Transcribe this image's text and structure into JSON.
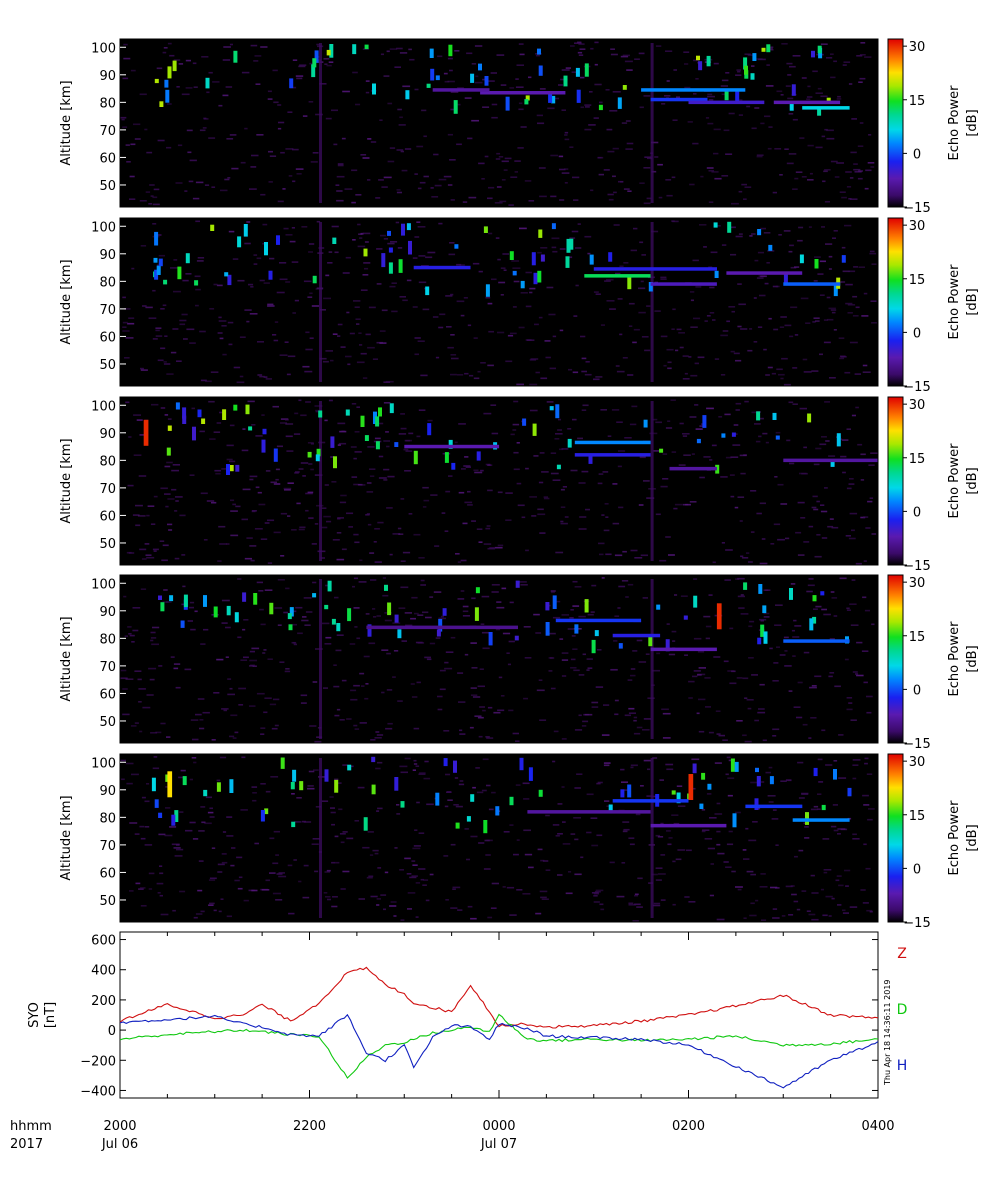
{
  "figure": {
    "time_axis": {
      "row_labels": [
        "hhmm",
        "2017"
      ],
      "ticks": [
        {
          "hhmm": "2000",
          "date": "Jul 06",
          "hours": 0
        },
        {
          "hhmm": "2200",
          "date": "",
          "hours": 2
        },
        {
          "hhmm": "0000",
          "date": "Jul 07",
          "hours": 4
        },
        {
          "hhmm": "0200",
          "date": "",
          "hours": 6
        },
        {
          "hhmm": "0400",
          "date": "",
          "hours": 8
        }
      ],
      "minor_step_hours": 0.5,
      "range_hours": [
        0,
        8
      ]
    },
    "timestamp": "Thu Apr 18 14:36:11 2019"
  },
  "chart_data": [
    {
      "type": "heatmap",
      "panel": 1,
      "ylabel": "Altitude [km]",
      "yticks": [
        50,
        60,
        70,
        80,
        90,
        100
      ],
      "ylim": [
        42,
        103
      ],
      "colorbar": {
        "label_line1": "Echo Power",
        "label_line2": "[dB]",
        "ticks": [
          -15,
          0,
          15,
          30
        ],
        "range": [
          -15,
          32
        ]
      },
      "features": [
        {
          "t0": 5.5,
          "t1": 6.6,
          "alt": 84.5,
          "db": 2
        },
        {
          "t0": 3.8,
          "t1": 4.7,
          "alt": 83.5,
          "db": -8
        },
        {
          "t0": 5.6,
          "t1": 6.2,
          "alt": 81,
          "db": -2
        },
        {
          "t0": 6.0,
          "t1": 6.8,
          "alt": 80,
          "db": -6
        },
        {
          "t0": 6.9,
          "t1": 7.6,
          "alt": 80,
          "db": -8
        },
        {
          "t0": 7.2,
          "t1": 7.7,
          "alt": 78,
          "db": 6
        },
        {
          "t0": 3.3,
          "t1": 3.9,
          "alt": 84.5,
          "db": -9
        }
      ]
    },
    {
      "type": "heatmap",
      "panel": 2,
      "ylabel": "Altitude [km]",
      "yticks": [
        50,
        60,
        70,
        80,
        90,
        100
      ],
      "ylim": [
        42,
        103
      ],
      "colorbar": {
        "label_line1": "Echo Power",
        "label_line2": "[dB]",
        "ticks": [
          -15,
          0,
          15,
          30
        ],
        "range": [
          -15,
          32
        ]
      },
      "features": [
        {
          "t0": 4.9,
          "t1": 5.6,
          "alt": 82,
          "db": 12
        },
        {
          "t0": 5.0,
          "t1": 6.3,
          "alt": 84.5,
          "db": -4
        },
        {
          "t0": 3.1,
          "t1": 3.7,
          "alt": 85,
          "db": -4
        },
        {
          "t0": 5.6,
          "t1": 6.3,
          "alt": 79,
          "db": -7
        },
        {
          "t0": 7.0,
          "t1": 7.6,
          "alt": 79,
          "db": 0
        },
        {
          "t0": 6.4,
          "t1": 7.2,
          "alt": 83,
          "db": -8
        }
      ]
    },
    {
      "type": "heatmap",
      "panel": 3,
      "ylabel": "Altitude [km]",
      "yticks": [
        50,
        60,
        70,
        80,
        90,
        100
      ],
      "ylim": [
        42,
        103
      ],
      "colorbar": {
        "label_line1": "Echo Power",
        "label_line2": "[dB]",
        "ticks": [
          -15,
          0,
          15,
          30
        ],
        "range": [
          -15,
          32
        ]
      },
      "features": [
        {
          "t0": 4.8,
          "t1": 5.6,
          "alt": 86.5,
          "db": 2
        },
        {
          "t0": 4.8,
          "t1": 5.6,
          "alt": 82,
          "db": -4
        },
        {
          "t0": 3.0,
          "t1": 4.0,
          "alt": 85,
          "db": -8
        },
        {
          "t0": 5.8,
          "t1": 6.3,
          "alt": 77,
          "db": -9
        },
        {
          "t0": 7.0,
          "t1": 8.0,
          "alt": 80,
          "db": -9
        },
        {
          "t0": 0.25,
          "t1": 0.3,
          "alt": 90,
          "db": 30
        }
      ]
    },
    {
      "type": "heatmap",
      "panel": 4,
      "ylabel": "Altitude [km]",
      "yticks": [
        50,
        60,
        70,
        80,
        90,
        100
      ],
      "ylim": [
        42,
        103
      ],
      "colorbar": {
        "label_line1": "Echo Power",
        "label_line2": "[dB]",
        "ticks": [
          -15,
          0,
          15,
          30
        ],
        "range": [
          -15,
          32
        ]
      },
      "features": [
        {
          "t0": 4.6,
          "t1": 5.5,
          "alt": 86.5,
          "db": -2
        },
        {
          "t0": 5.2,
          "t1": 5.7,
          "alt": 81,
          "db": -4
        },
        {
          "t0": 7.0,
          "t1": 7.7,
          "alt": 79,
          "db": 0
        },
        {
          "t0": 2.6,
          "t1": 4.2,
          "alt": 84,
          "db": -10
        },
        {
          "t0": 5.6,
          "t1": 6.3,
          "alt": 76,
          "db": -8
        },
        {
          "t0": 6.3,
          "t1": 6.35,
          "alt": 88,
          "db": 30
        }
      ]
    },
    {
      "type": "heatmap",
      "panel": 5,
      "ylabel": "Altitude [km]",
      "yticks": [
        50,
        60,
        70,
        80,
        90,
        100
      ],
      "ylim": [
        42,
        103
      ],
      "colorbar": {
        "label_line1": "Echo Power",
        "label_line2": "[dB]",
        "ticks": [
          -15,
          0,
          15,
          30
        ],
        "range": [
          -15,
          32
        ]
      },
      "features": [
        {
          "t0": 5.2,
          "t1": 6.0,
          "alt": 86,
          "db": -2
        },
        {
          "t0": 6.6,
          "t1": 7.2,
          "alt": 84,
          "db": -2
        },
        {
          "t0": 7.1,
          "t1": 7.7,
          "alt": 79,
          "db": 2
        },
        {
          "t0": 4.3,
          "t1": 5.6,
          "alt": 82,
          "db": -9
        },
        {
          "t0": 5.6,
          "t1": 6.4,
          "alt": 77,
          "db": -8
        },
        {
          "t0": 6.0,
          "t1": 6.05,
          "alt": 91,
          "db": 30
        },
        {
          "t0": 0.5,
          "t1": 0.55,
          "alt": 92,
          "db": 22
        }
      ]
    },
    {
      "type": "line",
      "panel": 6,
      "ylabel_line1": "SYO",
      "ylabel_line2": "[nT]",
      "yticks": [
        -400,
        -200,
        0,
        200,
        400,
        600
      ],
      "ylim": [
        -450,
        650
      ],
      "x_hours": [
        0,
        0.5,
        1,
        1.3,
        1.5,
        1.8,
        2.1,
        2.4,
        2.6,
        2.8,
        3.0,
        3.1,
        3.3,
        3.5,
        3.7,
        3.9,
        4.0,
        4.3,
        4.5,
        5,
        5.5,
        6,
        6.5,
        7,
        7.5,
        8
      ],
      "series": [
        {
          "name": "Z",
          "color": "#d01010",
          "values": [
            60,
            170,
            80,
            100,
            170,
            60,
            180,
            380,
            410,
            300,
            240,
            180,
            150,
            120,
            300,
            120,
            30,
            40,
            20,
            30,
            60,
            100,
            160,
            230,
            100,
            80
          ]
        },
        {
          "name": "D",
          "color": "#10c810",
          "values": [
            -60,
            -30,
            -10,
            0,
            -10,
            -30,
            -40,
            -320,
            -180,
            -100,
            -80,
            -60,
            -20,
            0,
            20,
            -10,
            100,
            -60,
            -70,
            -60,
            -70,
            -60,
            -40,
            -100,
            -90,
            -60
          ]
        },
        {
          "name": "H",
          "color": "#1020c0",
          "values": [
            50,
            70,
            90,
            40,
            20,
            -30,
            -40,
            100,
            -150,
            -200,
            -100,
            -250,
            -50,
            30,
            20,
            -60,
            40,
            10,
            -40,
            -50,
            -60,
            -100,
            -240,
            -380,
            -200,
            -80
          ]
        }
      ]
    }
  ]
}
